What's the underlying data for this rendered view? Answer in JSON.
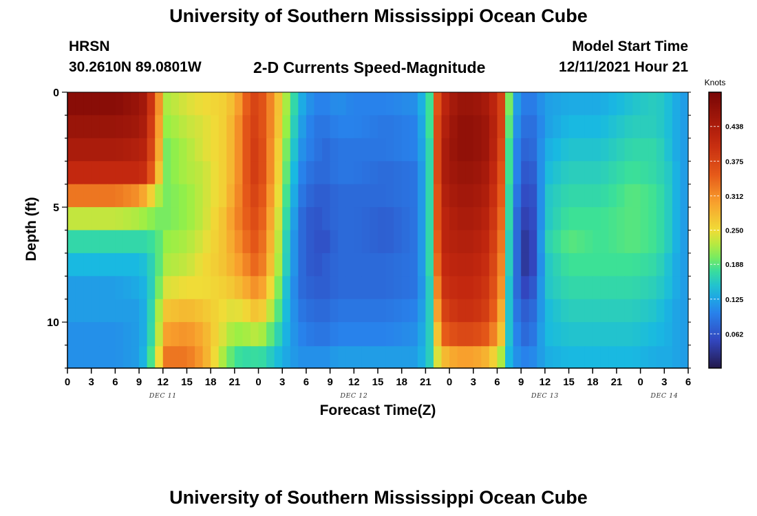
{
  "header": {
    "title": "University of Southern Mississippi Ocean Cube",
    "station": "HRSN",
    "coords": "30.2610N  89.0801W",
    "subtitle": "2-D Currents Speed-Magnitude",
    "model_start_label": "Model Start Time",
    "model_start_value": "12/11/2021 Hour 21"
  },
  "footer": {
    "title": "University of Southern Mississippi Ocean Cube"
  },
  "chart_data": {
    "type": "heatmap",
    "title": "2-D Currents Speed-Magnitude",
    "xlabel": "Forecast Time(Z)",
    "ylabel": "Depth (ft)",
    "x_tick_labels": [
      "0",
      "3",
      "6",
      "9",
      "12",
      "15",
      "18",
      "21",
      "0",
      "3",
      "6",
      "9",
      "12",
      "15",
      "18",
      "21",
      "0",
      "3",
      "6",
      "9",
      "12",
      "15",
      "18",
      "21",
      "0",
      "3",
      "6"
    ],
    "x_range_hours": [
      0,
      78
    ],
    "day_labels": [
      {
        "label": "DEC 11",
        "hour": 12
      },
      {
        "label": "DEC 12",
        "hour": 36
      },
      {
        "label": "DEC 13",
        "hour": 60
      },
      {
        "label": "DEC 14",
        "hour": 75
      }
    ],
    "y_ticks": [
      0,
      5,
      10
    ],
    "y_range_ft": [
      0,
      12
    ],
    "colorbar": {
      "label": "Knots",
      "range": [
        0.0,
        0.5
      ],
      "ticks": [
        "0.438",
        "0.375",
        "0.312",
        "0.250",
        "0.188",
        "0.125",
        "0.062"
      ]
    },
    "depth_rows": [
      0.5,
      1.5,
      2.5,
      3.5,
      4.5,
      5.5,
      6.5,
      7.5,
      8.5,
      9.5,
      10.5,
      11.6
    ],
    "time_keyframes_hours": [
      0,
      6,
      9,
      10,
      11.5,
      12.5,
      15,
      17,
      19.5,
      21,
      23,
      24,
      26,
      28,
      29.5,
      31,
      32.5,
      34,
      36,
      40,
      44,
      45.5,
      46.5,
      47.5,
      49,
      51,
      53,
      54.5,
      55.5,
      56.5,
      57,
      58,
      59,
      60,
      63,
      67,
      71,
      74,
      76,
      77,
      78
    ],
    "speed_knots": [
      [
        0.48,
        0.48,
        0.46,
        0.44,
        0.31,
        0.22,
        0.24,
        0.25,
        0.26,
        0.28,
        0.37,
        0.38,
        0.3,
        0.19,
        0.13,
        0.1,
        0.1,
        0.11,
        0.1,
        0.1,
        0.11,
        0.18,
        0.36,
        0.42,
        0.46,
        0.46,
        0.44,
        0.38,
        0.2,
        0.12,
        0.1,
        0.09,
        0.1,
        0.12,
        0.13,
        0.13,
        0.15,
        0.16,
        0.14,
        0.12,
        0.12
      ],
      [
        0.46,
        0.46,
        0.45,
        0.43,
        0.3,
        0.21,
        0.23,
        0.24,
        0.26,
        0.29,
        0.38,
        0.38,
        0.3,
        0.18,
        0.12,
        0.09,
        0.09,
        0.1,
        0.1,
        0.09,
        0.1,
        0.18,
        0.37,
        0.43,
        0.47,
        0.47,
        0.45,
        0.38,
        0.19,
        0.11,
        0.09,
        0.08,
        0.09,
        0.12,
        0.14,
        0.14,
        0.16,
        0.16,
        0.14,
        0.12,
        0.12
      ],
      [
        0.44,
        0.44,
        0.43,
        0.42,
        0.29,
        0.2,
        0.22,
        0.24,
        0.26,
        0.29,
        0.38,
        0.39,
        0.29,
        0.17,
        0.11,
        0.09,
        0.08,
        0.09,
        0.09,
        0.09,
        0.1,
        0.17,
        0.37,
        0.44,
        0.47,
        0.47,
        0.45,
        0.37,
        0.18,
        0.1,
        0.08,
        0.07,
        0.09,
        0.13,
        0.15,
        0.15,
        0.17,
        0.17,
        0.14,
        0.12,
        0.12
      ],
      [
        0.41,
        0.41,
        0.41,
        0.4,
        0.27,
        0.2,
        0.22,
        0.23,
        0.26,
        0.29,
        0.38,
        0.39,
        0.29,
        0.16,
        0.1,
        0.08,
        0.08,
        0.09,
        0.09,
        0.08,
        0.09,
        0.17,
        0.37,
        0.44,
        0.46,
        0.46,
        0.44,
        0.36,
        0.18,
        0.1,
        0.07,
        0.06,
        0.08,
        0.14,
        0.16,
        0.16,
        0.18,
        0.17,
        0.15,
        0.12,
        0.12
      ],
      [
        0.33,
        0.33,
        0.31,
        0.28,
        0.22,
        0.2,
        0.21,
        0.23,
        0.26,
        0.3,
        0.37,
        0.38,
        0.28,
        0.15,
        0.09,
        0.07,
        0.07,
        0.08,
        0.08,
        0.08,
        0.09,
        0.17,
        0.36,
        0.43,
        0.45,
        0.45,
        0.43,
        0.35,
        0.17,
        0.09,
        0.06,
        0.05,
        0.07,
        0.15,
        0.17,
        0.17,
        0.19,
        0.18,
        0.15,
        0.12,
        0.12
      ],
      [
        0.23,
        0.23,
        0.22,
        0.21,
        0.2,
        0.2,
        0.21,
        0.23,
        0.27,
        0.31,
        0.36,
        0.37,
        0.27,
        0.14,
        0.08,
        0.06,
        0.07,
        0.08,
        0.08,
        0.07,
        0.09,
        0.17,
        0.36,
        0.42,
        0.44,
        0.44,
        0.42,
        0.34,
        0.17,
        0.08,
        0.05,
        0.04,
        0.07,
        0.15,
        0.18,
        0.18,
        0.19,
        0.18,
        0.15,
        0.12,
        0.12
      ],
      [
        0.17,
        0.17,
        0.17,
        0.17,
        0.19,
        0.21,
        0.22,
        0.24,
        0.27,
        0.3,
        0.35,
        0.36,
        0.26,
        0.13,
        0.08,
        0.06,
        0.06,
        0.08,
        0.08,
        0.07,
        0.09,
        0.17,
        0.35,
        0.42,
        0.43,
        0.43,
        0.41,
        0.33,
        0.16,
        0.08,
        0.04,
        0.03,
        0.07,
        0.16,
        0.19,
        0.18,
        0.19,
        0.18,
        0.15,
        0.12,
        0.12
      ],
      [
        0.14,
        0.14,
        0.14,
        0.15,
        0.19,
        0.22,
        0.23,
        0.25,
        0.27,
        0.29,
        0.33,
        0.35,
        0.25,
        0.13,
        0.08,
        0.06,
        0.07,
        0.08,
        0.08,
        0.08,
        0.09,
        0.17,
        0.34,
        0.41,
        0.42,
        0.42,
        0.4,
        0.32,
        0.16,
        0.08,
        0.04,
        0.03,
        0.07,
        0.15,
        0.18,
        0.18,
        0.18,
        0.17,
        0.14,
        0.12,
        0.12
      ],
      [
        0.12,
        0.12,
        0.13,
        0.14,
        0.2,
        0.24,
        0.25,
        0.25,
        0.26,
        0.27,
        0.3,
        0.32,
        0.23,
        0.12,
        0.08,
        0.07,
        0.07,
        0.08,
        0.08,
        0.08,
        0.09,
        0.16,
        0.32,
        0.4,
        0.41,
        0.41,
        0.39,
        0.31,
        0.15,
        0.08,
        0.05,
        0.05,
        0.08,
        0.15,
        0.17,
        0.17,
        0.17,
        0.16,
        0.14,
        0.12,
        0.12
      ],
      [
        0.12,
        0.12,
        0.12,
        0.14,
        0.22,
        0.27,
        0.28,
        0.27,
        0.25,
        0.24,
        0.26,
        0.28,
        0.21,
        0.12,
        0.09,
        0.08,
        0.08,
        0.09,
        0.09,
        0.09,
        0.1,
        0.16,
        0.3,
        0.38,
        0.4,
        0.4,
        0.38,
        0.29,
        0.15,
        0.09,
        0.07,
        0.07,
        0.09,
        0.14,
        0.16,
        0.16,
        0.16,
        0.15,
        0.13,
        0.12,
        0.12
      ],
      [
        0.11,
        0.11,
        0.12,
        0.14,
        0.23,
        0.3,
        0.31,
        0.29,
        0.24,
        0.21,
        0.22,
        0.23,
        0.18,
        0.12,
        0.1,
        0.09,
        0.09,
        0.1,
        0.1,
        0.1,
        0.11,
        0.16,
        0.27,
        0.35,
        0.37,
        0.37,
        0.35,
        0.27,
        0.15,
        0.1,
        0.08,
        0.08,
        0.1,
        0.14,
        0.15,
        0.15,
        0.15,
        0.14,
        0.13,
        0.12,
        0.12
      ],
      [
        0.11,
        0.11,
        0.12,
        0.15,
        0.25,
        0.33,
        0.33,
        0.3,
        0.22,
        0.18,
        0.17,
        0.18,
        0.15,
        0.12,
        0.11,
        0.11,
        0.11,
        0.12,
        0.12,
        0.12,
        0.12,
        0.16,
        0.24,
        0.28,
        0.3,
        0.3,
        0.28,
        0.22,
        0.14,
        0.11,
        0.1,
        0.1,
        0.11,
        0.13,
        0.14,
        0.14,
        0.14,
        0.13,
        0.13,
        0.12,
        0.12
      ]
    ]
  }
}
